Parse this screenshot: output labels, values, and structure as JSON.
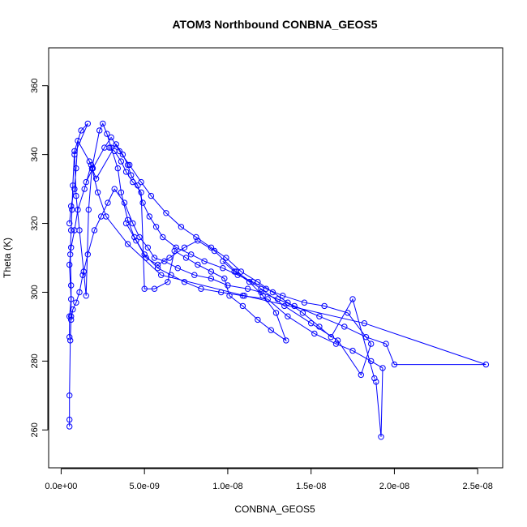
{
  "chart_data": {
    "type": "line",
    "title": "ATOM3 Northbound CONBNA_GEOS5",
    "xlabel": "CONBNA_GEOS5",
    "ylabel": "Theta (K)",
    "xlim": [
      -7.5e-10,
      2.65e-08
    ],
    "ylim": [
      249,
      371
    ],
    "x_ticks": [
      0,
      5e-09,
      1e-08,
      1.5e-08,
      2e-08,
      2.5e-08
    ],
    "x_tick_labels": [
      "0.0e+00",
      "5.0e-09",
      "1.0e-08",
      "1.5e-08",
      "2.0e-08",
      "2.5e-08"
    ],
    "y_ticks": [
      260,
      280,
      300,
      320,
      340,
      360
    ],
    "y_tick_labels": [
      "260",
      "280",
      "300",
      "320",
      "340",
      "360"
    ],
    "grid": false,
    "marker": "open-circle",
    "series_color": "#0000ff",
    "series": [
      {
        "x": [
          5e-10,
          5e-10,
          5e-10,
          5.5e-10,
          6e-10,
          6e-10,
          5.5e-10,
          6e-10,
          6.5e-10,
          7e-10,
          8e-10,
          1.2e-09,
          1.6e-09,
          8e-10,
          9e-10,
          1.1e-09,
          1.35e-09,
          1.5e-09,
          1.65e-09,
          1.85e-09,
          2.3e-09,
          2.5e-09,
          2.75e-09,
          3e-09,
          3.4e-09,
          3.6e-09,
          4e-09,
          4.4e-09,
          5e-09,
          5.8e-09,
          6.6e-09,
          7.4e-09,
          8.4e-09,
          9.6e-09,
          1.09e-08,
          1.24e-08,
          1.36e-08,
          1.52e-08,
          1.65e-08,
          1.75e-08,
          1.86e-08,
          1.93e-08,
          1.92e-08,
          1.89e-08
        ],
        "y": [
          261,
          263,
          270,
          286,
          293,
          302,
          311,
          318,
          324,
          331,
          341,
          347,
          349,
          340,
          328,
          318,
          306,
          299,
          324,
          336,
          347,
          349,
          346,
          342,
          336,
          329,
          321,
          316,
          311,
          307,
          305,
          303,
          301,
          300,
          299,
          298,
          293,
          288,
          285,
          283,
          280,
          278,
          258,
          274
        ]
      },
      {
        "x": [
          6e-10,
          7e-10,
          9e-10,
          1.1e-09,
          1.3e-09,
          1.6e-09,
          2e-09,
          2.4e-09,
          2.8e-09,
          3.2e-09,
          3.8e-09,
          4.3e-09,
          4.7e-09,
          5.2e-09,
          5.6e-09,
          6.2e-09,
          7e-09,
          8e-09,
          9e-09,
          1e-08,
          1.12e-08,
          1.2e-08,
          1.3e-08,
          1.4e-08,
          1.55e-08,
          1.7e-08,
          1.83e-08,
          1.95e-08,
          2e-08,
          2.55e-08,
          1.82e-08,
          1.1e-08,
          6e-09,
          4e-09,
          2.7e-09,
          2.2e-09,
          1.8e-09,
          1.4e-09,
          1e-09,
          8e-10,
          6e-10,
          5e-10,
          6e-10,
          5e-10,
          5e-10
        ],
        "y": [
          292,
          295,
          297,
          300,
          305,
          311,
          318,
          322,
          326,
          330,
          326,
          320,
          316,
          313,
          310,
          309,
          307,
          305,
          304,
          302,
          301,
          300,
          298,
          296,
          293,
          290,
          287,
          285,
          279,
          279,
          291,
          299,
          305,
          314,
          322,
          329,
          337,
          330,
          324,
          318,
          313,
          308,
          298,
          293,
          287
        ]
      },
      {
        "x": [
          5e-10,
          6e-10,
          8e-10,
          9e-10,
          1e-09,
          1.7e-09,
          2.1e-09,
          3.3e-09,
          3.7e-09,
          4e-09,
          4.2e-09,
          4.6e-09,
          4.9e-09,
          5.3e-09,
          5.7e-09,
          6.1e-09,
          6.9e-09,
          7.8e-09,
          8.6e-09,
          9.7e-09,
          1.06e-08,
          1.15e-08,
          1.23e-08,
          1.33e-08,
          1.46e-08,
          1.58e-08,
          1.72e-08,
          1.86e-08,
          1.8e-08,
          1.66e-08,
          1.5e-08,
          1.34e-08,
          1.2e-08,
          1.05e-08,
          9.2e-09,
          8.2e-09,
          7.4e-09,
          6.5e-09,
          5.8e-09,
          5.1e-09,
          4.5e-09,
          3.9e-09
        ],
        "y": [
          320,
          325,
          330,
          336,
          344,
          338,
          333,
          343,
          340,
          337,
          334,
          331,
          326,
          322,
          319,
          316,
          313,
          311,
          309,
          307,
          305,
          303,
          301,
          299,
          297,
          296,
          294,
          285,
          276,
          286,
          291,
          296,
          301,
          306,
          312,
          315,
          313,
          310,
          308,
          310,
          315,
          320
        ]
      },
      {
        "x": [
          1.5e-09,
          1.9e-09,
          2.6e-09,
          3e-09,
          3.5e-09,
          4.1e-09,
          4.8e-09,
          5.4e-09,
          6.3e-09,
          7.2e-09,
          8.1e-09,
          9e-09,
          9.9e-09,
          1.08e-08,
          1.18e-08,
          1.27e-08,
          1.36e-08,
          1.45e-08,
          1.55e-08,
          1.62e-08,
          1.75e-08,
          1.88e-08
        ],
        "y": [
          332,
          336,
          342,
          345,
          341,
          337,
          332,
          328,
          323,
          319,
          316,
          313,
          310,
          306,
          303,
          300,
          297,
          294,
          290,
          287,
          298,
          275
        ]
      },
      {
        "x": [
          2.9e-09,
          3.2e-09,
          3.6e-09,
          3.9e-09,
          4.3e-09,
          4.8e-09,
          5e-09,
          5.6e-09,
          6.4e-09,
          6.8e-09,
          7.5e-09,
          8.2e-09,
          9e-09,
          9.8e-09,
          1.01e-08,
          1.09e-08,
          1.18e-08,
          1.26e-08,
          1.35e-08,
          1.29e-08,
          1.21e-08,
          1.13e-08,
          1.04e-08,
          9.7e-09
        ],
        "y": [
          342,
          341,
          338,
          335,
          332,
          329,
          301,
          301,
          303,
          312,
          310,
          308,
          306,
          304,
          299,
          296,
          292,
          289,
          286,
          294,
          299,
          303,
          306,
          309
        ]
      }
    ]
  }
}
